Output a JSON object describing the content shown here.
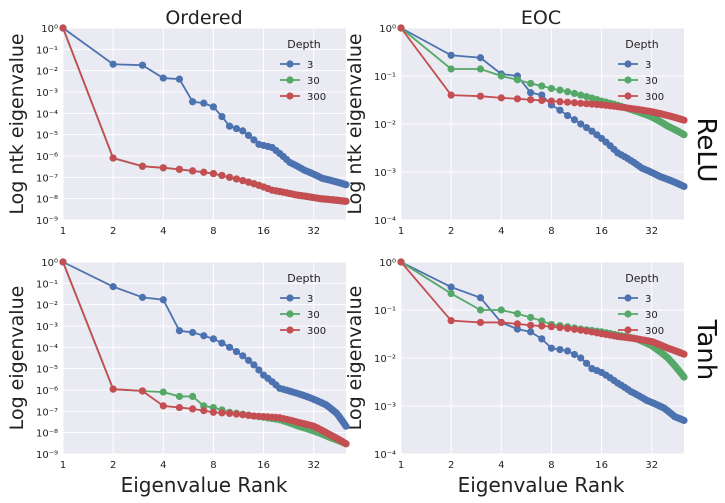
{
  "figure": {
    "xlabel": "Eigenvalue Rank",
    "row_labels": [
      "ReLU",
      "Tanh"
    ],
    "column_titles": [
      "Ordered",
      "EOC"
    ],
    "legend_title": "Depth",
    "colors": {
      "3": "#4c72b0",
      "30": "#55a868",
      "300": "#c44e52",
      "background": "#eaeaf2",
      "grid": "#ffffff"
    }
  },
  "chart_data": [
    {
      "type": "line",
      "title": "Ordered",
      "ylabel": "Log ntk eigenvalue",
      "row_label": "",
      "xscale": "log2",
      "yscale": "log10",
      "xlim": [
        1,
        50
      ],
      "ylim": [
        1e-09,
        1
      ],
      "xticks": [
        "1",
        "2",
        "4",
        "8",
        "16",
        "32"
      ],
      "yticks": [
        "10⁻⁹",
        "10⁻⁸",
        "10⁻⁷",
        "10⁻⁶",
        "10⁻⁵",
        "10⁻⁴",
        "10⁻³",
        "10⁻²",
        "10⁻¹",
        "10⁰"
      ],
      "legend": {
        "title": "Depth",
        "entries": [
          "3",
          "30",
          "300"
        ],
        "position": "top-right"
      },
      "series": [
        {
          "name": "3",
          "anchors": [
            [
              1,
              1
            ],
            [
              2,
              0.02
            ],
            [
              3,
              0.018
            ],
            [
              4,
              0.0045
            ],
            [
              5,
              0.004
            ],
            [
              6,
              0.00035
            ],
            [
              7,
              0.0003
            ],
            [
              8,
              0.0002
            ],
            [
              10,
              2.5e-05
            ],
            [
              12,
              1.5e-05
            ],
            [
              15,
              3.5e-06
            ],
            [
              18,
              2.5e-06
            ],
            [
              23,
              5e-07
            ],
            [
              28,
              2.2e-07
            ],
            [
              36,
              9e-08
            ],
            [
              50,
              4.5e-08
            ]
          ]
        },
        {
          "name": "30",
          "anchors": [
            [
              1,
              1
            ],
            [
              2,
              8e-07
            ],
            [
              3,
              3.3e-07
            ],
            [
              4,
              2.8e-07
            ],
            [
              6,
              2e-07
            ],
            [
              8,
              1.5e-07
            ],
            [
              10,
              1e-07
            ],
            [
              14,
              5e-08
            ],
            [
              18,
              2.5e-08
            ],
            [
              25,
              1.5e-08
            ],
            [
              35,
              1e-08
            ],
            [
              50,
              7.5e-09
            ]
          ]
        },
        {
          "name": "300",
          "anchors": [
            [
              1,
              1
            ],
            [
              2,
              8e-07
            ],
            [
              3,
              3.3e-07
            ],
            [
              4,
              2.8e-07
            ],
            [
              6,
              2e-07
            ],
            [
              8,
              1.5e-07
            ],
            [
              10,
              1e-07
            ],
            [
              14,
              5e-08
            ],
            [
              18,
              2.5e-08
            ],
            [
              25,
              1.5e-08
            ],
            [
              35,
              1e-08
            ],
            [
              50,
              7.5e-09
            ]
          ]
        }
      ]
    },
    {
      "type": "line",
      "title": "EOC",
      "ylabel": "Log ntk eigenvalue",
      "row_label": "ReLU",
      "xscale": "log2",
      "yscale": "log10",
      "xlim": [
        1,
        50
      ],
      "ylim": [
        0.0001,
        1
      ],
      "xticks": [
        "1",
        "2",
        "4",
        "8",
        "16",
        "32"
      ],
      "yticks": [
        "10⁻⁴",
        "10⁻³",
        "10⁻²",
        "10⁻¹",
        "10⁰"
      ],
      "legend": {
        "title": "Depth",
        "entries": [
          "3",
          "30",
          "300"
        ],
        "position": "top-right"
      },
      "series": [
        {
          "name": "3",
          "anchors": [
            [
              1,
              1
            ],
            [
              2,
              0.27
            ],
            [
              3,
              0.24
            ],
            [
              4,
              0.11
            ],
            [
              5,
              0.1
            ],
            [
              6,
              0.045
            ],
            [
              7,
              0.04
            ],
            [
              8,
              0.025
            ],
            [
              10,
              0.015
            ],
            [
              12,
              0.01
            ],
            [
              16,
              0.005
            ],
            [
              20,
              0.0025
            ],
            [
              28,
              0.0012
            ],
            [
              36,
              0.0008
            ],
            [
              50,
              0.0005
            ]
          ]
        },
        {
          "name": "30",
          "anchors": [
            [
              1,
              1
            ],
            [
              2,
              0.14
            ],
            [
              3,
              0.14
            ],
            [
              4,
              0.1
            ],
            [
              6,
              0.07
            ],
            [
              8,
              0.055
            ],
            [
              12,
              0.04
            ],
            [
              16,
              0.03
            ],
            [
              24,
              0.02
            ],
            [
              32,
              0.014
            ],
            [
              40,
              0.009
            ],
            [
              50,
              0.006
            ]
          ]
        },
        {
          "name": "300",
          "anchors": [
            [
              1,
              1
            ],
            [
              2,
              0.04
            ],
            [
              3,
              0.038
            ],
            [
              4,
              0.035
            ],
            [
              6,
              0.032
            ],
            [
              8,
              0.03
            ],
            [
              12,
              0.027
            ],
            [
              16,
              0.025
            ],
            [
              24,
              0.021
            ],
            [
              32,
              0.018
            ],
            [
              40,
              0.015
            ],
            [
              50,
              0.012
            ]
          ]
        }
      ]
    },
    {
      "type": "line",
      "title": "",
      "ylabel": "Log eigenvalue",
      "row_label": "",
      "xscale": "log2",
      "yscale": "log10",
      "xlim": [
        1,
        50
      ],
      "ylim": [
        1e-09,
        1
      ],
      "xticks": [
        "1",
        "2",
        "4",
        "8",
        "16",
        "32"
      ],
      "yticks": [
        "10⁻⁹",
        "10⁻⁸",
        "10⁻⁷",
        "10⁻⁶",
        "10⁻⁵",
        "10⁻⁴",
        "10⁻³",
        "10⁻²",
        "10⁻¹",
        "10⁰"
      ],
      "legend": {
        "title": "Depth",
        "entries": [
          "3",
          "30",
          "300"
        ],
        "position": "top-right"
      },
      "series": [
        {
          "name": "3",
          "anchors": [
            [
              1,
              1
            ],
            [
              2,
              0.07
            ],
            [
              3,
              0.022
            ],
            [
              4,
              0.017
            ],
            [
              5,
              0.0006
            ],
            [
              6,
              0.0005
            ],
            [
              7,
              0.00035
            ],
            [
              8,
              0.00025
            ],
            [
              10,
              0.0001
            ],
            [
              12,
              4e-05
            ],
            [
              14,
              1.5e-05
            ],
            [
              16,
              5e-06
            ],
            [
              20,
              1.2e-06
            ],
            [
              24,
              8e-07
            ],
            [
              30,
              4.5e-07
            ],
            [
              38,
              2e-07
            ],
            [
              44,
              8e-08
            ],
            [
              50,
              2e-08
            ]
          ]
        },
        {
          "name": "30",
          "anchors": [
            [
              1,
              1
            ],
            [
              2,
              1.1e-06
            ],
            [
              3,
              9e-07
            ],
            [
              4,
              8e-07
            ],
            [
              5,
              5e-07
            ],
            [
              6,
              5e-07
            ],
            [
              7,
              1.8e-07
            ],
            [
              8,
              1.5e-07
            ],
            [
              10,
              9e-08
            ],
            [
              14,
              6e-08
            ],
            [
              20,
              4e-08
            ],
            [
              26,
              2e-08
            ],
            [
              32,
              1.2e-08
            ],
            [
              40,
              6e-09
            ],
            [
              50,
              3e-09
            ]
          ]
        },
        {
          "name": "300",
          "anchors": [
            [
              1,
              1
            ],
            [
              2,
              1.1e-06
            ],
            [
              3,
              9e-07
            ],
            [
              4,
              1.8e-07
            ],
            [
              5,
              1.5e-07
            ],
            [
              6,
              1.3e-07
            ],
            [
              8,
              9e-08
            ],
            [
              10,
              8e-08
            ],
            [
              14,
              6e-08
            ],
            [
              20,
              5e-08
            ],
            [
              26,
              3e-08
            ],
            [
              32,
              2e-08
            ],
            [
              40,
              8e-09
            ],
            [
              50,
              3e-09
            ]
          ]
        }
      ]
    },
    {
      "type": "line",
      "title": "",
      "ylabel": "Log eigenvalue",
      "row_label": "Tanh",
      "xscale": "log2",
      "yscale": "log10",
      "xlim": [
        1,
        50
      ],
      "ylim": [
        0.0001,
        1
      ],
      "xticks": [
        "1",
        "2",
        "4",
        "8",
        "16",
        "32"
      ],
      "yticks": [
        "10⁻⁴",
        "10⁻³",
        "10⁻²",
        "10⁻¹",
        "10⁰"
      ],
      "legend": {
        "title": "Depth",
        "entries": [
          "3",
          "30",
          "300"
        ],
        "position": "top-right"
      },
      "series": [
        {
          "name": "3",
          "anchors": [
            [
              1,
              1
            ],
            [
              2,
              0.3
            ],
            [
              3,
              0.18
            ],
            [
              4,
              0.055
            ],
            [
              5,
              0.04
            ],
            [
              6,
              0.035
            ],
            [
              7,
              0.025
            ],
            [
              8,
              0.016
            ],
            [
              10,
              0.014
            ],
            [
              12,
              0.01
            ],
            [
              14,
              0.006
            ],
            [
              16,
              0.005
            ],
            [
              20,
              0.003
            ],
            [
              24,
              0.002
            ],
            [
              30,
              0.0013
            ],
            [
              38,
              0.0009
            ],
            [
              44,
              0.0006
            ],
            [
              50,
              0.0005
            ]
          ]
        },
        {
          "name": "30",
          "anchors": [
            [
              1,
              1
            ],
            [
              2,
              0.22
            ],
            [
              3,
              0.1
            ],
            [
              4,
              0.1
            ],
            [
              6,
              0.07
            ],
            [
              8,
              0.05
            ],
            [
              12,
              0.04
            ],
            [
              16,
              0.035
            ],
            [
              20,
              0.03
            ],
            [
              26,
              0.025
            ],
            [
              32,
              0.018
            ],
            [
              40,
              0.01
            ],
            [
              50,
              0.004
            ]
          ]
        },
        {
          "name": "300",
          "anchors": [
            [
              1,
              1
            ],
            [
              2,
              0.06
            ],
            [
              3,
              0.055
            ],
            [
              4,
              0.055
            ],
            [
              6,
              0.048
            ],
            [
              8,
              0.045
            ],
            [
              12,
              0.038
            ],
            [
              16,
              0.032
            ],
            [
              20,
              0.028
            ],
            [
              26,
              0.025
            ],
            [
              32,
              0.022
            ],
            [
              40,
              0.016
            ],
            [
              50,
              0.012
            ]
          ]
        }
      ]
    }
  ]
}
